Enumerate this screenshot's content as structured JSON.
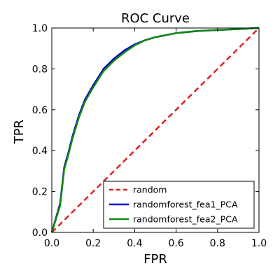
{
  "chart_data": {
    "type": "line",
    "title": "ROC Curve",
    "xlabel": "FPR",
    "ylabel": "TPR",
    "xlim": [
      0.0,
      1.0
    ],
    "ylim": [
      0.0,
      1.0
    ],
    "xticks": [
      "0.0",
      "0.2",
      "0.4",
      "0.6",
      "0.8",
      "1.0"
    ],
    "yticks": [
      "0.0",
      "0.2",
      "0.4",
      "0.6",
      "0.8",
      "1.0"
    ],
    "grid": false,
    "legend_position": "lower-right",
    "series": [
      {
        "name": "random",
        "color": "#dd2222",
        "style": "dashed",
        "x": [
          0.0,
          1.0
        ],
        "y": [
          0.0,
          1.0
        ]
      },
      {
        "name": "randomforest_fea1_PCA",
        "color": "#0000cc",
        "style": "solid",
        "x": [
          0.0,
          0.04,
          0.06,
          0.08,
          0.1,
          0.13,
          0.16,
          0.2,
          0.25,
          0.3,
          0.35,
          0.4,
          0.45,
          0.5,
          0.6,
          0.7,
          0.8,
          0.9,
          1.0
        ],
        "y": [
          0.0,
          0.14,
          0.32,
          0.39,
          0.47,
          0.57,
          0.65,
          0.72,
          0.8,
          0.85,
          0.89,
          0.92,
          0.94,
          0.955,
          0.975,
          0.985,
          0.99,
          0.995,
          1.0
        ]
      },
      {
        "name": "randomforest_fea2_PCA",
        "color": "#118811",
        "style": "solid",
        "x": [
          0.0,
          0.04,
          0.06,
          0.08,
          0.1,
          0.13,
          0.16,
          0.2,
          0.25,
          0.3,
          0.35,
          0.4,
          0.45,
          0.5,
          0.6,
          0.7,
          0.8,
          0.9,
          1.0
        ],
        "y": [
          0.0,
          0.13,
          0.31,
          0.38,
          0.46,
          0.56,
          0.64,
          0.71,
          0.79,
          0.84,
          0.88,
          0.915,
          0.94,
          0.955,
          0.975,
          0.985,
          0.99,
          0.995,
          1.0
        ]
      }
    ]
  }
}
